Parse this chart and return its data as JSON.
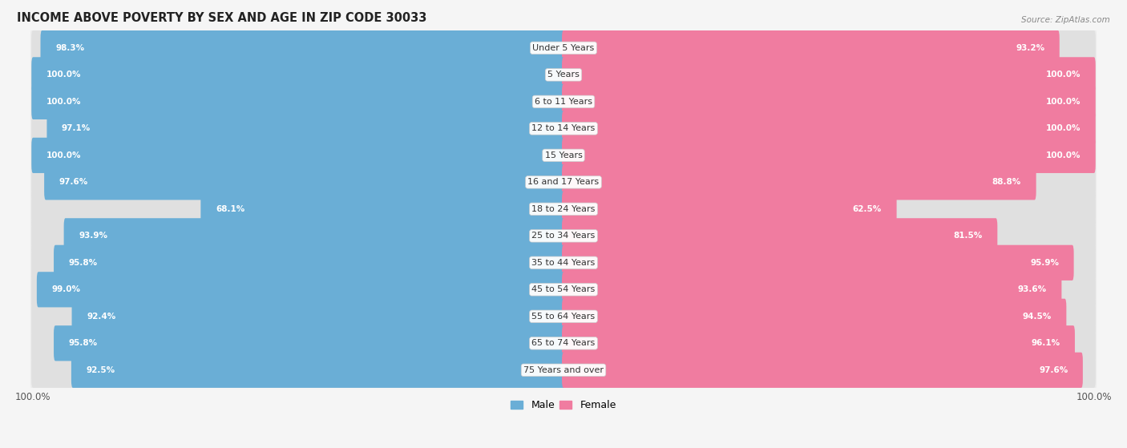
{
  "title": "INCOME ABOVE POVERTY BY SEX AND AGE IN ZIP CODE 30033",
  "source": "Source: ZipAtlas.com",
  "categories": [
    "Under 5 Years",
    "5 Years",
    "6 to 11 Years",
    "12 to 14 Years",
    "15 Years",
    "16 and 17 Years",
    "18 to 24 Years",
    "25 to 34 Years",
    "35 to 44 Years",
    "45 to 54 Years",
    "55 to 64 Years",
    "65 to 74 Years",
    "75 Years and over"
  ],
  "male_values": [
    98.3,
    100.0,
    100.0,
    97.1,
    100.0,
    97.6,
    68.1,
    93.9,
    95.8,
    99.0,
    92.4,
    95.8,
    92.5
  ],
  "female_values": [
    93.2,
    100.0,
    100.0,
    100.0,
    100.0,
    88.8,
    62.5,
    81.5,
    95.9,
    93.6,
    94.5,
    96.1,
    97.6
  ],
  "male_color": "#6AAED6",
  "female_color": "#F07CA0",
  "bar_bg_color": "#E0E0E0",
  "background_color": "#f5f5f5",
  "row_bg_color": "#ECECEC",
  "title_fontsize": 10.5,
  "label_fontsize": 8,
  "value_fontsize": 7.5,
  "tick_fontsize": 8.5,
  "xlabel_bottom_left": "100.0%",
  "xlabel_bottom_right": "100.0%"
}
